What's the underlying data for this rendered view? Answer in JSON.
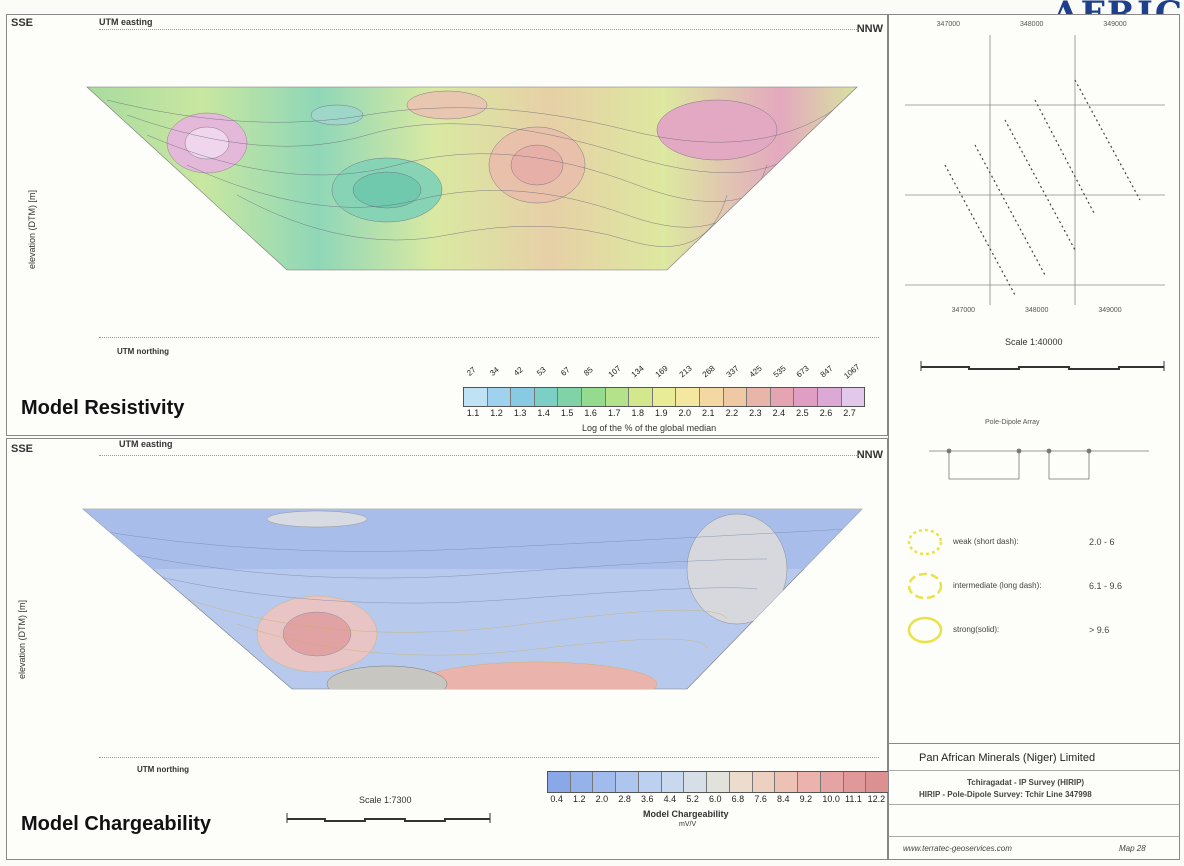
{
  "corner_brand": "AFRIC",
  "top": {
    "dir_left": "SSE",
    "dir_right": "NNW",
    "easting_label": "UTM easting",
    "northing_label": "UTM northing",
    "ylabel": "elevation (DTM) [m]",
    "title": "Model Resistivity",
    "cb_values": [
      "1.1",
      "1.2",
      "1.3",
      "1.4",
      "1.5",
      "1.6",
      "1.7",
      "1.8",
      "1.9",
      "2.0",
      "2.1",
      "2.2",
      "2.3",
      "2.4",
      "2.5",
      "2.6",
      "2.7"
    ],
    "cb_top": [
      "27",
      "34",
      "42",
      "53",
      "67",
      "85",
      "107",
      "134",
      "169",
      "213",
      "268",
      "337",
      "425",
      "535",
      "673",
      "847",
      "1067"
    ],
    "cb_colors": [
      "#bfe3f4",
      "#9ed2ee",
      "#88c9e4",
      "#7ccfc5",
      "#7fd3a6",
      "#95db8f",
      "#b3e28a",
      "#d3e88d",
      "#e8ec97",
      "#f4e8a0",
      "#f3d9a1",
      "#efc8a4",
      "#e9b5a8",
      "#e5a4b1",
      "#e09ec2",
      "#dca9d6",
      "#e2c8ea"
    ],
    "cb_caption": "Log of the % of the global median"
  },
  "bottom": {
    "dir_left": "SSE",
    "dir_right": "NNW",
    "easting_label": "UTM easting",
    "northing_label": "UTM northing",
    "ylabel": "elevation (DTM) [m]",
    "title": "Model Chargeability",
    "scale": "Scale 1:7300",
    "cb_values": [
      "0.4",
      "1.2",
      "2.0",
      "2.8",
      "3.6",
      "4.4",
      "5.2",
      "6.0",
      "6.8",
      "7.6",
      "8.4",
      "9.2",
      "10.0",
      "11.1",
      "12.2"
    ],
    "cb_colors": [
      "#8aa8e8",
      "#95b2ea",
      "#a1bcec",
      "#aec6ee",
      "#bcd0f0",
      "#c8d8ef",
      "#d6dfe8",
      "#e2e2dd",
      "#ecdccd",
      "#eed0c0",
      "#edc2b5",
      "#ebb3ab",
      "#e6a3a3",
      "#e09898",
      "#dc9090"
    ],
    "cb_caption": "Model Chargeability",
    "cb_unit": "mV/V"
  },
  "map": {
    "top_ticks": [
      "347000",
      "348000",
      "349000"
    ],
    "bottom_ticks": [
      "347000",
      "348000",
      "349000"
    ],
    "scale": "Scale 1:40000"
  },
  "legend": {
    "array_title": "Pole-Dipole Array",
    "items": [
      {
        "label": "weak (short dash):",
        "value": "2.0 - 6"
      },
      {
        "label": "intermediate (long dash):",
        "value": "6.1 - 9.6"
      },
      {
        "label": "strong(solid):",
        "value": "> 9.6"
      }
    ]
  },
  "titleblock": {
    "company": "Pan African Minerals (Niger) Limited",
    "line1": "Tchiragadat - IP Survey (HIRIP)",
    "line2": "HIRIP - Pole-Dipole Survey: Tchir Line 347998",
    "website": "www.terratec-geoservices.com",
    "map_no": "Map 28"
  }
}
